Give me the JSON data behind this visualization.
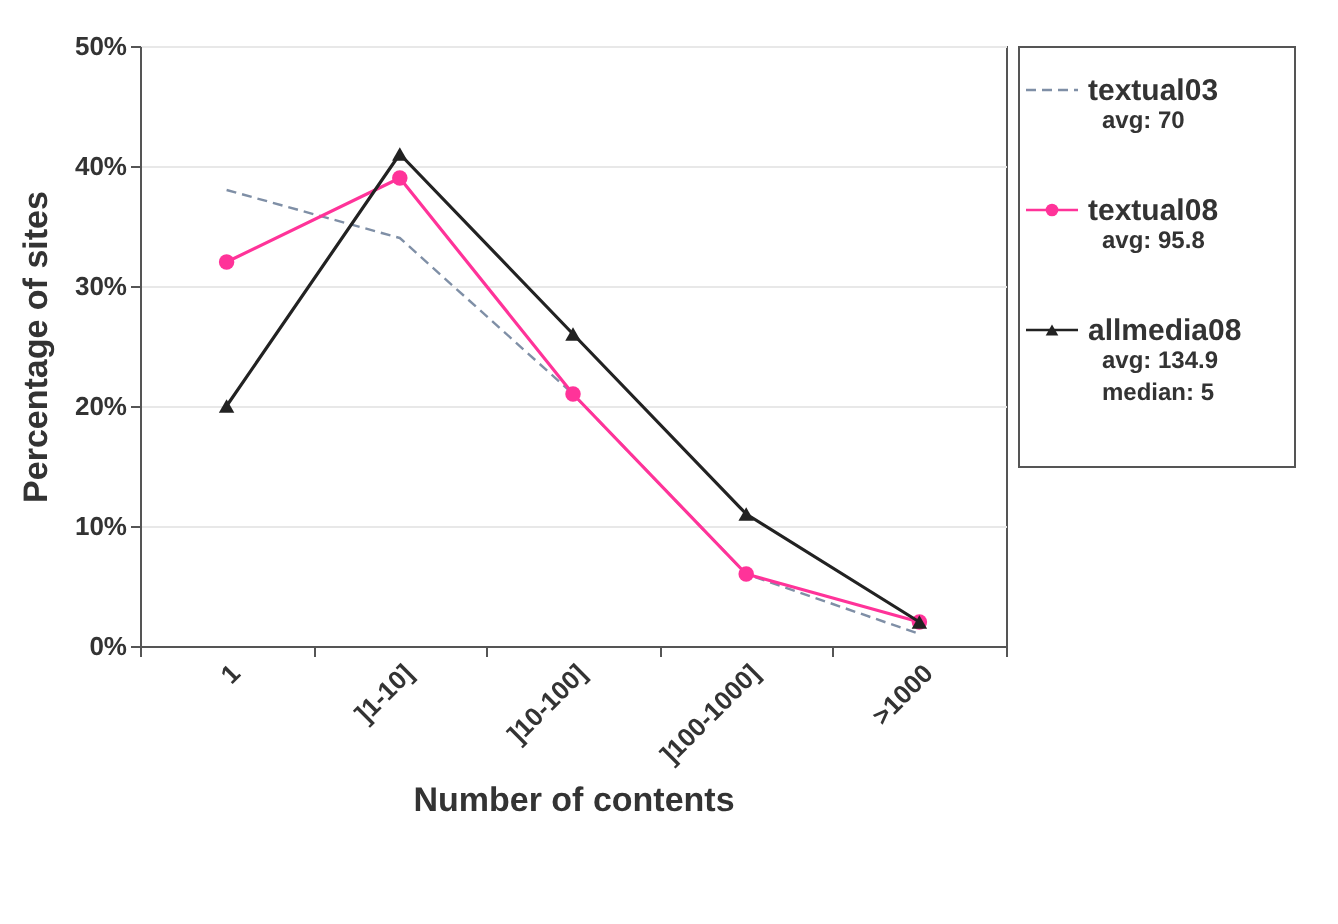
{
  "chart_data": {
    "type": "line",
    "xlabel": "Number of contents",
    "ylabel": "Percentage of sites",
    "categories": [
      "1",
      "]1-10]",
      "]10-100]",
      "]100-1000]",
      ">1000"
    ],
    "series": [
      {
        "name": "textual03",
        "color": "#7f8fa6",
        "line_style": "dashed",
        "marker": "none",
        "values": [
          38,
          34,
          21,
          6,
          1
        ]
      },
      {
        "name": "textual08",
        "color": "#ff3399",
        "line_style": "solid",
        "marker": "circle",
        "values": [
          32,
          39,
          21,
          6,
          2
        ]
      },
      {
        "name": "allmedia08",
        "color": "#222222",
        "line_style": "solid",
        "marker": "triangle",
        "values": [
          20,
          41,
          26,
          11,
          2
        ]
      }
    ],
    "annotations": [
      "avg: 70",
      "avg: 95.8",
      "avg: 134.9\nmedian: 5"
    ],
    "ylim": [
      0,
      50
    ],
    "yticks": [
      {
        "value": 0,
        "label": "0%"
      },
      {
        "value": 10,
        "label": "10%"
      },
      {
        "value": 20,
        "label": "20%"
      },
      {
        "value": 30,
        "label": "30%"
      },
      {
        "value": 40,
        "label": "40%"
      },
      {
        "value": 50,
        "label": "50%"
      }
    ],
    "grid": "y",
    "legend": "right"
  }
}
